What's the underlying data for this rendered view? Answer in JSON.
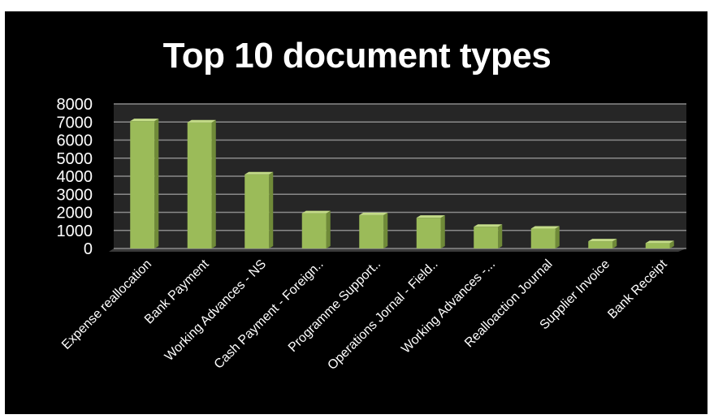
{
  "chart_data": {
    "type": "bar",
    "title": "Top 10 document types",
    "categories": [
      "Expense reallocation",
      "Bank Payment",
      "Working Advances - NS",
      "Cash Payment - Foreign..",
      "Programme Support..",
      "Operations Jornal - Field..",
      "Working Advances -...",
      "Realloaction Journal",
      "Supplier Invoice",
      "Bank Receipt"
    ],
    "values": [
      7050,
      6980,
      4100,
      1950,
      1850,
      1700,
      1200,
      1100,
      400,
      300
    ],
    "yticks": [
      "0",
      "1000",
      "2000",
      "3000",
      "4000",
      "5000",
      "6000",
      "7000",
      "8000"
    ],
    "ylim": [
      0,
      8000
    ],
    "xlabel": "",
    "ylabel": "",
    "grid": true,
    "colors": {
      "background": "#000000",
      "plot_floor": "#3a3a3a",
      "plot_wall": "#262626",
      "gridline": "#8a8a8a",
      "bar_front": "#9bbb59",
      "bar_side": "#6f8a38",
      "bar_top": "#c4dc88",
      "text": "#ffffff"
    }
  }
}
